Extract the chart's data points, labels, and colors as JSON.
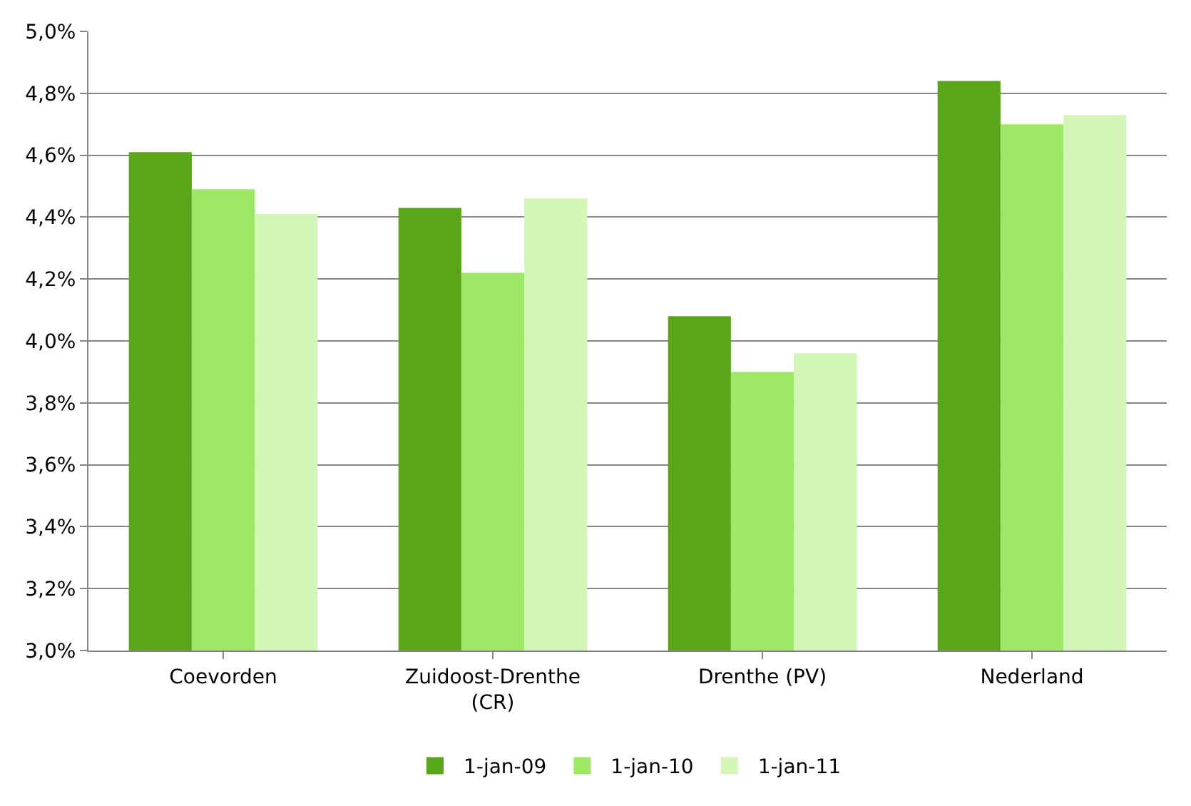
{
  "chart_data": {
    "type": "bar",
    "categories": [
      "Coevorden",
      "Zuidoost-Drenthe\n(CR)",
      "Drenthe (PV)",
      "Nederland"
    ],
    "series": [
      {
        "name": "1-jan-09",
        "color": "#5aa61a",
        "values": [
          4.61,
          4.43,
          4.08,
          4.84
        ]
      },
      {
        "name": "1-jan-10",
        "color": "#9de865",
        "values": [
          4.49,
          4.22,
          3.9,
          4.7
        ]
      },
      {
        "name": "1-jan-11",
        "color": "#d4f5b8",
        "values": [
          4.41,
          4.46,
          3.96,
          4.73
        ]
      }
    ],
    "ylim": [
      3.0,
      5.0
    ],
    "yticks": [
      {
        "value": 3.0,
        "label": "3,0%"
      },
      {
        "value": 3.2,
        "label": "3,2%"
      },
      {
        "value": 3.4,
        "label": "3,4%"
      },
      {
        "value": 3.6,
        "label": "3,6%"
      },
      {
        "value": 3.8,
        "label": "3,8%"
      },
      {
        "value": 4.0,
        "label": "4,0%"
      },
      {
        "value": 4.2,
        "label": "4,2%"
      },
      {
        "value": 4.4,
        "label": "4,4%"
      },
      {
        "value": 4.6,
        "label": "4,6%"
      },
      {
        "value": 4.8,
        "label": "4,8%"
      },
      {
        "value": 5.0,
        "label": "5,0%"
      }
    ],
    "grid": "y",
    "legend": "bottom"
  }
}
